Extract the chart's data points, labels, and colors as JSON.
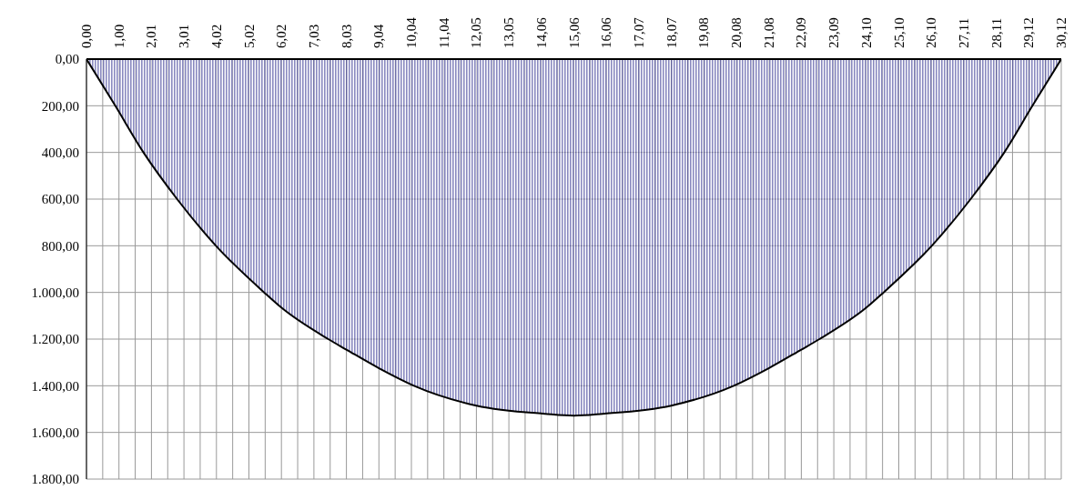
{
  "chart_data": {
    "type": "area",
    "grid": true,
    "x": [
      0,
      0.89,
      1.76,
      2.8,
      4,
      5.49,
      6.02,
      7.47,
      8.03,
      9.04,
      10.12,
      12.05,
      14.17,
      15.06,
      15.95,
      18.07,
      20,
      21.08,
      22.09,
      22.65,
      24.1,
      24.63,
      26.12,
      27.32,
      28.36,
      29.23,
      30.12
    ],
    "series": [
      {
        "color": "#3c3c96",
        "values": [
          0,
          200,
          400,
          600,
          800,
          1000,
          1065,
          1200,
          1245,
          1325,
          1400,
          1485,
          1520,
          1528,
          1520,
          1485,
          1400,
          1325,
          1245,
          1200,
          1065,
          1000,
          800,
          600,
          400,
          200,
          0
        ]
      }
    ],
    "xlim": [
      0,
      30.12
    ],
    "xticks": [
      {
        "value": 0,
        "label": "0,00"
      },
      {
        "value": 0.502,
        "label": null
      },
      {
        "value": 1.004,
        "label": "1,00"
      },
      {
        "value": 1.506,
        "label": null
      },
      {
        "value": 2.008,
        "label": "2,01"
      },
      {
        "value": 2.51,
        "label": null
      },
      {
        "value": 3.012,
        "label": "3,01"
      },
      {
        "value": 3.514,
        "label": null
      },
      {
        "value": 4.016,
        "label": "4,02"
      },
      {
        "value": 4.518,
        "label": null
      },
      {
        "value": 5.02,
        "label": "5,02"
      },
      {
        "value": 5.522,
        "label": null
      },
      {
        "value": 6.024,
        "label": "6,02"
      },
      {
        "value": 6.526,
        "label": null
      },
      {
        "value": 7.028,
        "label": "7,03"
      },
      {
        "value": 7.53,
        "label": null
      },
      {
        "value": 8.032,
        "label": "8,03"
      },
      {
        "value": 8.534,
        "label": null
      },
      {
        "value": 9.036,
        "label": "9,04"
      },
      {
        "value": 9.538,
        "label": null
      },
      {
        "value": 10.04,
        "label": "10,04"
      },
      {
        "value": 10.542,
        "label": null
      },
      {
        "value": 11.044,
        "label": "11,04"
      },
      {
        "value": 11.546,
        "label": null
      },
      {
        "value": 12.048,
        "label": "12,05"
      },
      {
        "value": 12.55,
        "label": null
      },
      {
        "value": 13.052,
        "label": "13,05"
      },
      {
        "value": 13.554,
        "label": null
      },
      {
        "value": 14.056,
        "label": "14,06"
      },
      {
        "value": 14.558,
        "label": null
      },
      {
        "value": 15.06,
        "label": "15,06"
      },
      {
        "value": 15.562,
        "label": null
      },
      {
        "value": 16.064,
        "label": "16,06"
      },
      {
        "value": 16.566,
        "label": null
      },
      {
        "value": 17.068,
        "label": "17,07"
      },
      {
        "value": 17.57,
        "label": null
      },
      {
        "value": 18.072,
        "label": "18,07"
      },
      {
        "value": 18.574,
        "label": null
      },
      {
        "value": 19.076,
        "label": "19,08"
      },
      {
        "value": 19.578,
        "label": null
      },
      {
        "value": 20.08,
        "label": "20,08"
      },
      {
        "value": 20.582,
        "label": null
      },
      {
        "value": 21.084,
        "label": "21,08"
      },
      {
        "value": 21.586,
        "label": null
      },
      {
        "value": 22.088,
        "label": "22,09"
      },
      {
        "value": 22.59,
        "label": null
      },
      {
        "value": 23.092,
        "label": "23,09"
      },
      {
        "value": 23.594,
        "label": null
      },
      {
        "value": 24.096,
        "label": "24,10"
      },
      {
        "value": 24.598,
        "label": null
      },
      {
        "value": 25.1,
        "label": "25,10"
      },
      {
        "value": 25.602,
        "label": null
      },
      {
        "value": 26.104,
        "label": "26,10"
      },
      {
        "value": 26.606,
        "label": null
      },
      {
        "value": 27.108,
        "label": "27,11"
      },
      {
        "value": 27.61,
        "label": null
      },
      {
        "value": 28.112,
        "label": "28,11"
      },
      {
        "value": 28.614,
        "label": null
      },
      {
        "value": 29.116,
        "label": "29,12"
      },
      {
        "value": 29.618,
        "label": null
      },
      {
        "value": 30.12,
        "label": "30,12"
      }
    ],
    "ylim": [
      1800,
      0
    ],
    "yticks": [
      {
        "value": 0,
        "label": "0,00"
      },
      {
        "value": 200,
        "label": "200,00"
      },
      {
        "value": 400,
        "label": "400,00"
      },
      {
        "value": 600,
        "label": "600,00"
      },
      {
        "value": 800,
        "label": "800,00"
      },
      {
        "value": 1000,
        "label": "1.000,00"
      },
      {
        "value": 1200,
        "label": "1.200,00"
      },
      {
        "value": 1400,
        "label": "1.400,00"
      },
      {
        "value": 1600,
        "label": "1.600,00"
      },
      {
        "value": 1800,
        "label": "1.800,00"
      }
    ]
  }
}
